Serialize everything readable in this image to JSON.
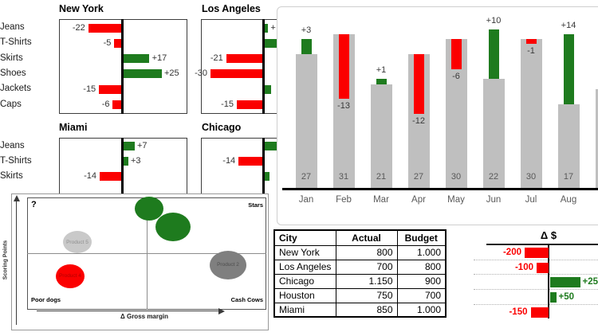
{
  "colors": {
    "red": "#fb0000",
    "green": "#1e7b1e",
    "gray_bar": "#bfbfbf",
    "light_gray_bubble": "#c9c9c9",
    "dark_gray_bubble": "#7f7f7f",
    "label_dark": "#333333",
    "label_muted": "#595959",
    "axis_black": "#000000"
  },
  "chart_data": [
    {
      "type": "bar",
      "name": "city-product-variance-small-multiples",
      "charts": [
        {
          "title": "New York",
          "categories": [
            "Jeans",
            "T-Shirts",
            "Skirts",
            "Shoes",
            "Jackets",
            "Caps"
          ],
          "values": [
            -22,
            -5,
            17,
            25,
            -15,
            -6
          ],
          "labels": [
            "-22",
            "-5",
            "+17",
            "+25",
            "-15",
            "-6"
          ]
        },
        {
          "title": "Los Angeles",
          "categories": [
            "Jeans",
            "T-Shirts",
            "Skirts",
            "Shoes",
            "Jackets",
            "Caps"
          ],
          "values": [
            2,
            7,
            -21,
            -30,
            4,
            -15
          ],
          "labels": [
            "+",
            "",
            "-21",
            "-30",
            "",
            "-15"
          ]
        },
        {
          "title": "Miami",
          "categories": [
            "Jeans",
            "T-Shirts",
            "Skirts"
          ],
          "values": [
            7,
            3,
            -14
          ],
          "labels": [
            "+7",
            "+3",
            "-14"
          ]
        },
        {
          "title": "Chicago",
          "categories": [
            "Jeans",
            "T-Shirts",
            "Skirts"
          ],
          "values": [
            8,
            -14,
            3
          ],
          "labels": [
            "",
            "-14",
            ""
          ]
        }
      ]
    },
    {
      "type": "bar",
      "name": "monthly-actual-with-variance",
      "categories": [
        "Jan",
        "Feb",
        "Mar",
        "Apr",
        "May",
        "Jun",
        "Jul",
        "Aug"
      ],
      "series": [
        {
          "name": "base",
          "values": [
            27,
            31,
            21,
            27,
            30,
            22,
            30,
            17
          ]
        },
        {
          "name": "variance",
          "values": [
            3,
            -13,
            1,
            -12,
            -6,
            10,
            -1,
            14
          ]
        }
      ],
      "base_labels": [
        "27",
        "31",
        "21",
        "27",
        "30",
        "22",
        "30",
        "17"
      ],
      "variance_labels": [
        "+3",
        "-13",
        "+1",
        "-12",
        "-6",
        "+10",
        "-1",
        "+14"
      ],
      "partial_ninth_bar_base": 20
    },
    {
      "type": "bar",
      "name": "delta-dollar-by-city",
      "title": "Δ $",
      "categories": [
        "New York",
        "Los Angeles",
        "Chicago",
        "Houston",
        "Miami"
      ],
      "values": [
        -200,
        -100,
        250,
        50,
        -150
      ],
      "labels": [
        "-200",
        "-100",
        "+250",
        "+50",
        "-150"
      ]
    },
    {
      "type": "scatter",
      "name": "product-portfolio-matrix",
      "quadrants": {
        "top_left": "?",
        "top_right": "Stars",
        "bottom_left": "Poor dogs",
        "bottom_right": "Cash Cows"
      },
      "xlabel": "Δ Gross margin",
      "ylabel": "Scoring Points",
      "bubbles": [
        {
          "label": "",
          "color": "#1e7b1e",
          "x": 0.51,
          "y": 0.1,
          "rx": 18,
          "ry": 15
        },
        {
          "label": "",
          "color": "#1e7b1e",
          "x": 0.61,
          "y": 0.26,
          "rx": 22,
          "ry": 18
        },
        {
          "label": "Product 5",
          "color": "#c9c9c9",
          "x": 0.21,
          "y": 0.4,
          "rx": 18,
          "ry": 14,
          "label_color": "#8f8f8f"
        },
        {
          "label": "Product 4",
          "color": "#fb0000",
          "x": 0.18,
          "y": 0.7,
          "rx": 18,
          "ry": 15,
          "label_color": "#b30000"
        },
        {
          "label": "Product 2",
          "color": "#7f7f7f",
          "x": 0.84,
          "y": 0.6,
          "rx": 23,
          "ry": 18,
          "label_color": "#4d4d4d"
        }
      ]
    }
  ],
  "table": {
    "headers": [
      "City",
      "Actual",
      "Budget"
    ],
    "rows": [
      [
        "New York",
        "800",
        "1.000"
      ],
      [
        "Los Angeles",
        "700",
        "800"
      ],
      [
        "Chicago",
        "1.150",
        "900"
      ],
      [
        "Houston",
        "750",
        "700"
      ],
      [
        "Miami",
        "850",
        "1.000"
      ]
    ]
  }
}
